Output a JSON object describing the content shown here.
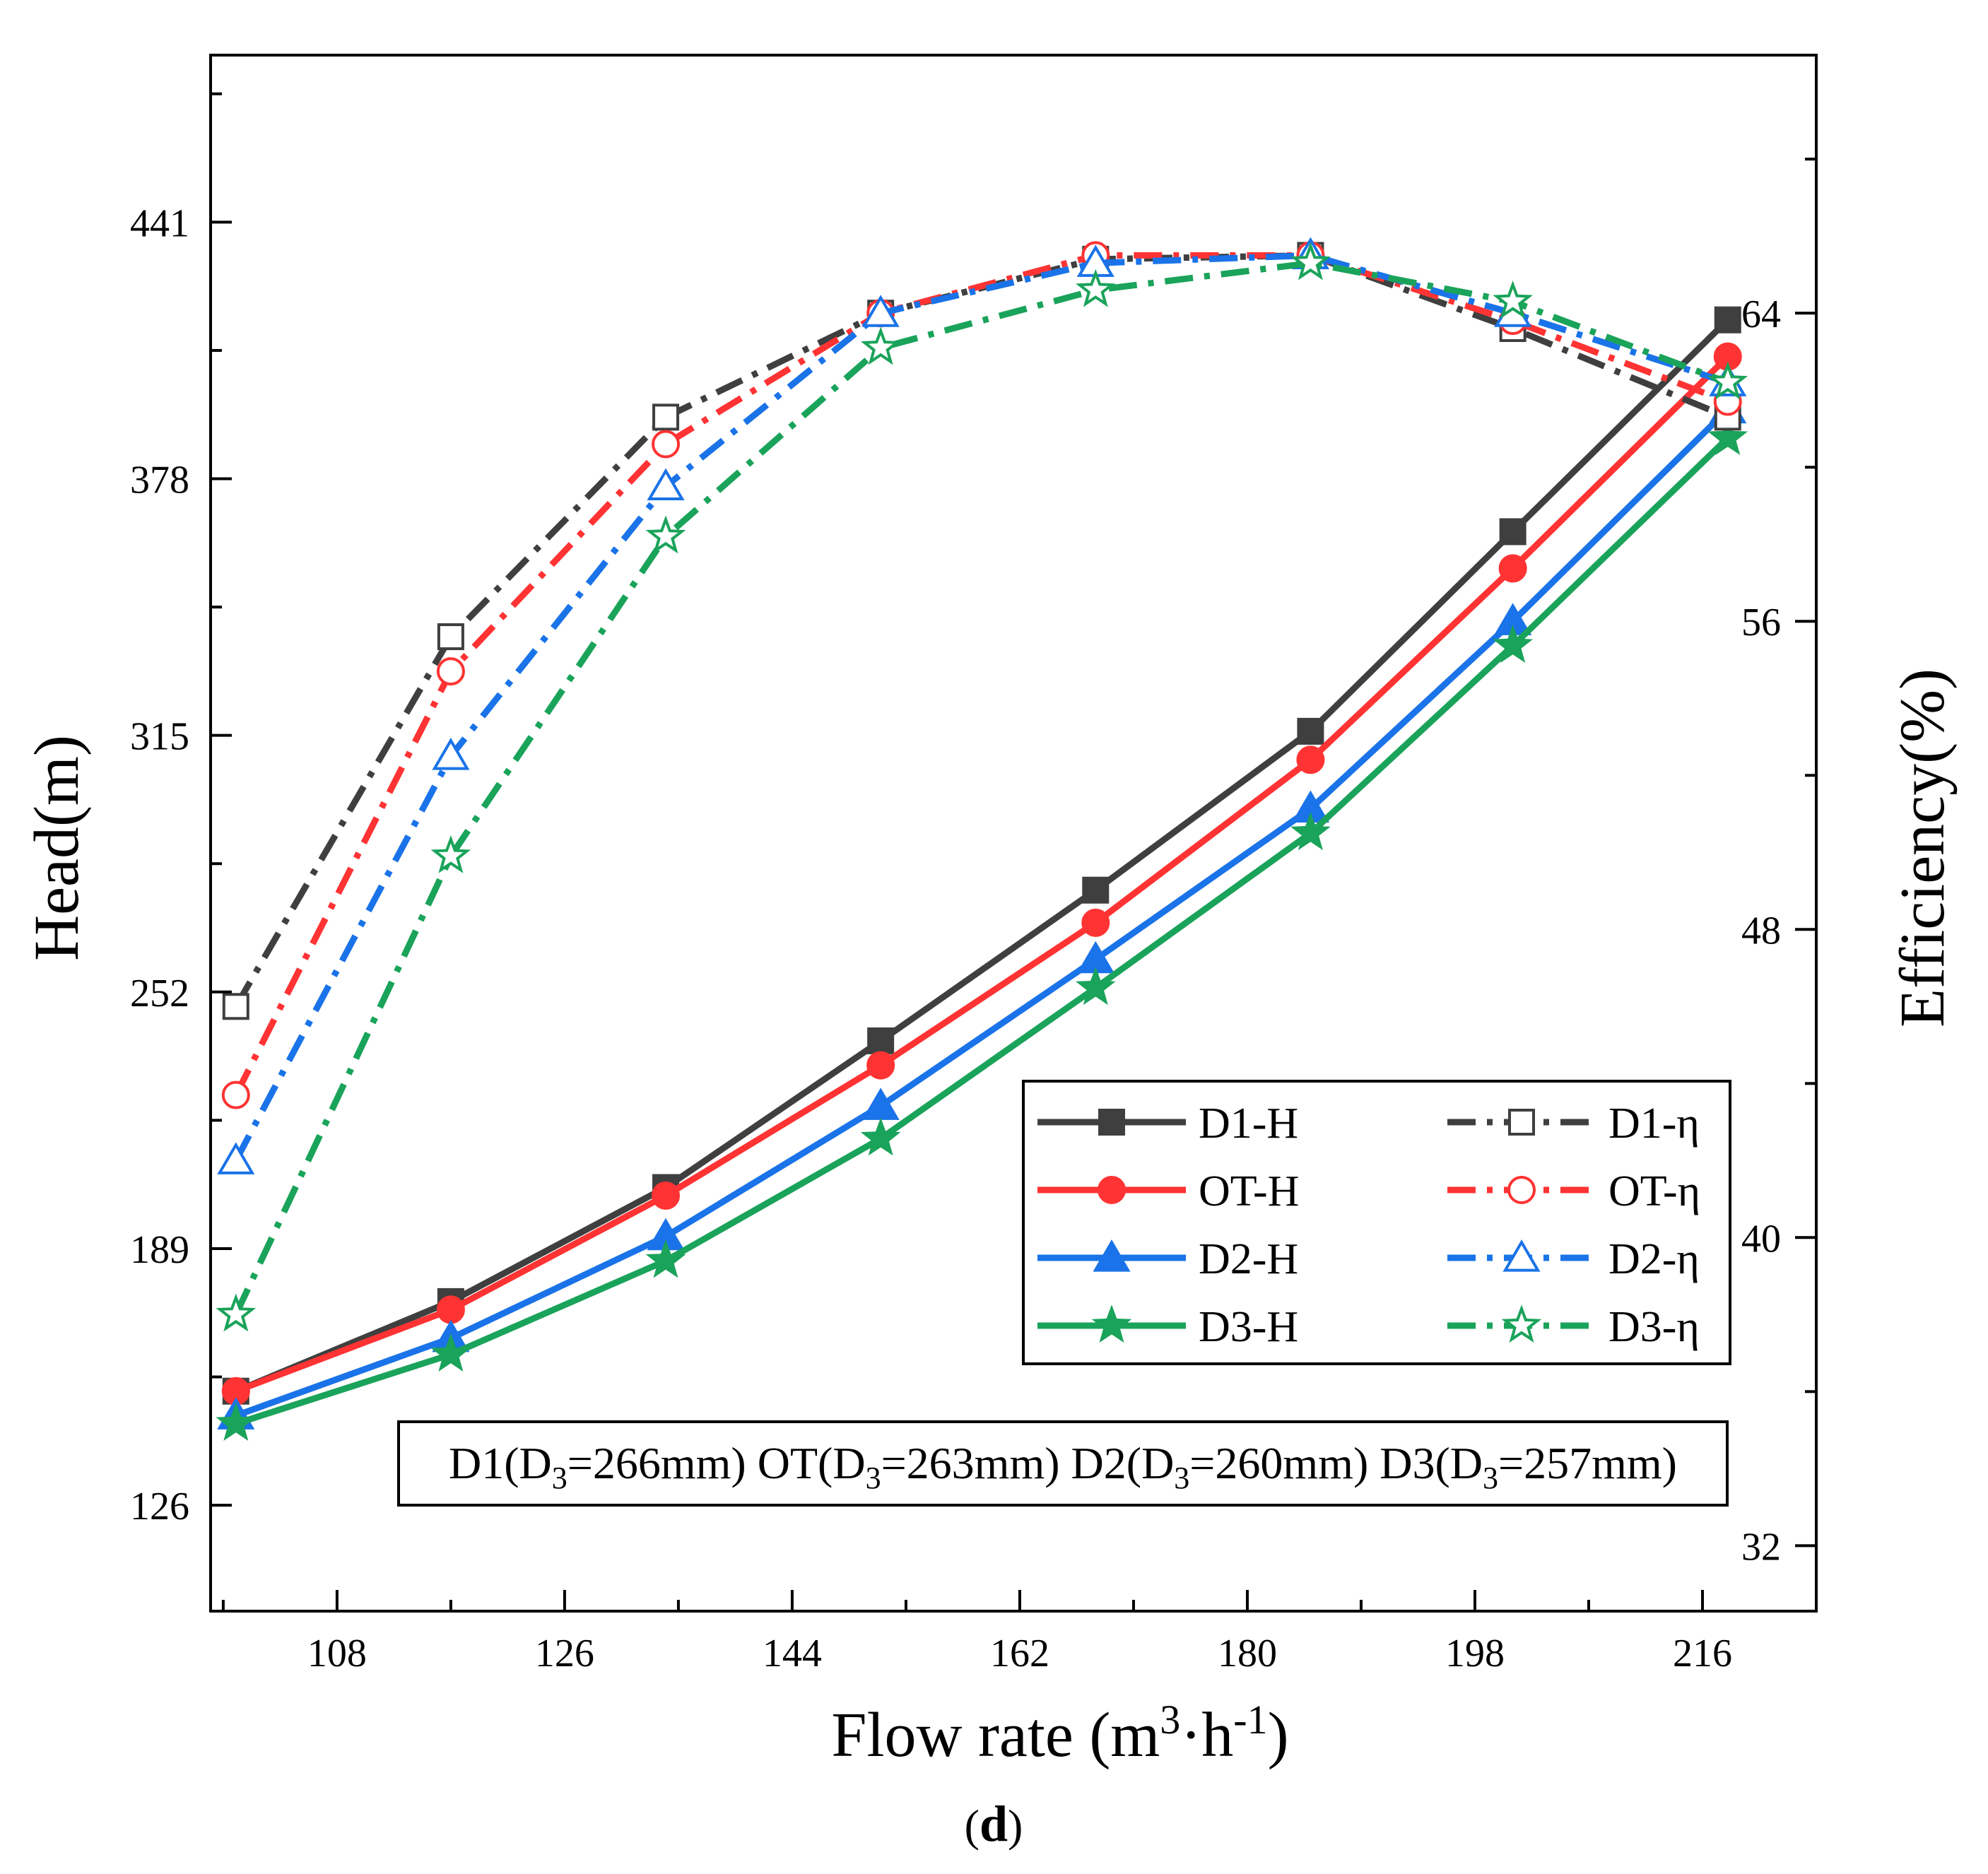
{
  "chart_data": {
    "type": "line",
    "xlabel": "Flow rate (m",
    "xlabel_sup1": "3",
    "xlabel_mid": "·h",
    "xlabel_sup2": "-1",
    "xlabel_end": ")",
    "ylabel_left": "Head(m)",
    "ylabel_right": "Efficiency(%)",
    "xlim": [
      98,
      225
    ],
    "ylim_left": [
      100,
      482
    ],
    "ylim_right": [
      30.3,
      70.7
    ],
    "x_ticks": [
      108,
      126,
      144,
      162,
      180,
      198,
      216
    ],
    "y_left_ticks": [
      126,
      189,
      252,
      315,
      378,
      441
    ],
    "y_right_ticks": [
      32,
      40,
      48,
      56,
      64
    ],
    "x": [
      100,
      117,
      134,
      151,
      168,
      185,
      201,
      218
    ],
    "series": [
      {
        "name": "D1-H",
        "axis": "left",
        "style": "solid",
        "marker": "square",
        "filled": true,
        "color": "#3f3f3f",
        "values": [
          154,
          176,
          204,
          240,
          277,
          316,
          365,
          417
        ]
      },
      {
        "name": "OT-H",
        "axis": "left",
        "style": "solid",
        "marker": "circle",
        "filled": true,
        "color": "#ff3333",
        "values": [
          154,
          174,
          202,
          234,
          269,
          309,
          356,
          408
        ]
      },
      {
        "name": "D2-H",
        "axis": "left",
        "style": "solid",
        "marker": "triangle",
        "filled": true,
        "color": "#1a73e8",
        "values": [
          148,
          167,
          192,
          224,
          260,
          297,
          343,
          395
        ]
      },
      {
        "name": "D3-H",
        "axis": "left",
        "style": "solid",
        "marker": "star",
        "filled": true,
        "color": "#1aa35a",
        "values": [
          146,
          163,
          186,
          216,
          253,
          291,
          337,
          388
        ]
      },
      {
        "name": "D1-η",
        "axis": "right",
        "style": "dashdot",
        "marker": "square",
        "filled": false,
        "color": "#3f3f3f",
        "values": [
          46.0,
          55.6,
          61.3,
          64.0,
          65.4,
          65.5,
          63.6,
          61.3
        ]
      },
      {
        "name": "OT-η",
        "axis": "right",
        "style": "dashdot",
        "marker": "circle",
        "filled": false,
        "color": "#ff3333",
        "values": [
          43.7,
          54.7,
          60.6,
          64.0,
          65.5,
          65.5,
          63.8,
          61.7
        ]
      },
      {
        "name": "D2-η",
        "axis": "right",
        "style": "dashdot",
        "marker": "triangle",
        "filled": false,
        "color": "#1a73e8",
        "values": [
          42.0,
          52.5,
          59.5,
          64.0,
          65.3,
          65.5,
          64.0,
          62.2
        ]
      },
      {
        "name": "D3-η",
        "axis": "right",
        "style": "dashdot",
        "marker": "star",
        "filled": false,
        "color": "#1aa35a",
        "values": [
          38.0,
          49.9,
          58.2,
          63.1,
          64.6,
          65.3,
          64.3,
          62.2
        ]
      }
    ],
    "legend_position": "lower-right",
    "grid": false
  },
  "caption": {
    "items": [
      {
        "name": "D1",
        "value": "=266mm)"
      },
      {
        "name": "OT",
        "value": "=263mm)"
      },
      {
        "name": "D2",
        "value": "=260mm)"
      },
      {
        "name": "D3",
        "value": "=257mm)"
      }
    ],
    "prefix": "(D",
    "sub": "3"
  },
  "panel_label": {
    "open": "(",
    "letter": "d",
    "close": ")"
  }
}
